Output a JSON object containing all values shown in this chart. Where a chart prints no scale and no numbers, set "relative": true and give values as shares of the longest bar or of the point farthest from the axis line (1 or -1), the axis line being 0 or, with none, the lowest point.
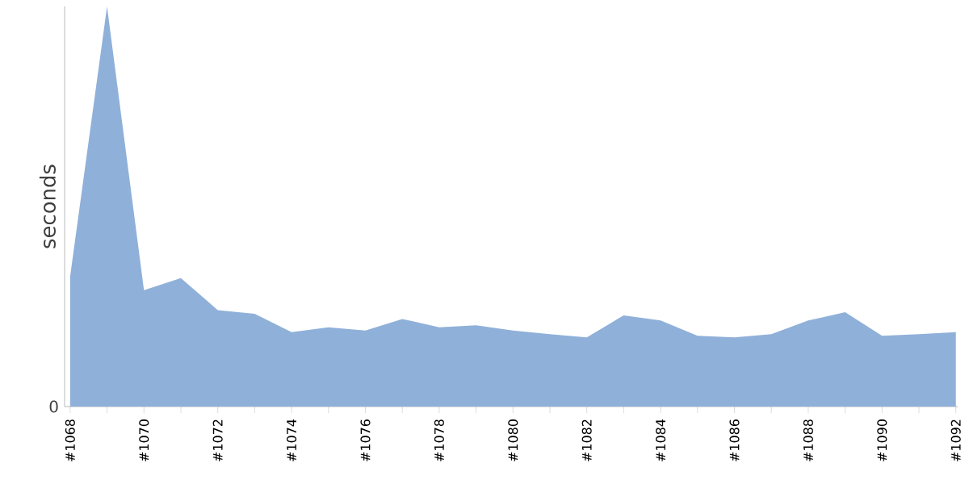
{
  "chart_data": {
    "type": "area",
    "ylabel": "seconds",
    "relative": true,
    "color": "#8fb0d9",
    "categories": [
      "#1068",
      null,
      "#1070",
      null,
      "#1072",
      null,
      "#1074",
      null,
      "#1076",
      null,
      "#1078",
      null,
      "#1080",
      null,
      "#1082",
      null,
      "#1084",
      null,
      "#1086",
      null,
      "#1088",
      null,
      "#1090",
      null,
      "#1092"
    ],
    "values": [
      0.325,
      1,
      0.291,
      0.321,
      0.241,
      0.232,
      0.186,
      0.198,
      0.19,
      0.219,
      0.198,
      0.203,
      0.19,
      0.181,
      0.173,
      0.228,
      0.215,
      0.177,
      0.173,
      0.181,
      0.215,
      0.236,
      0.177,
      0.181,
      0.186
    ],
    "annotations": [
      "0"
    ]
  }
}
